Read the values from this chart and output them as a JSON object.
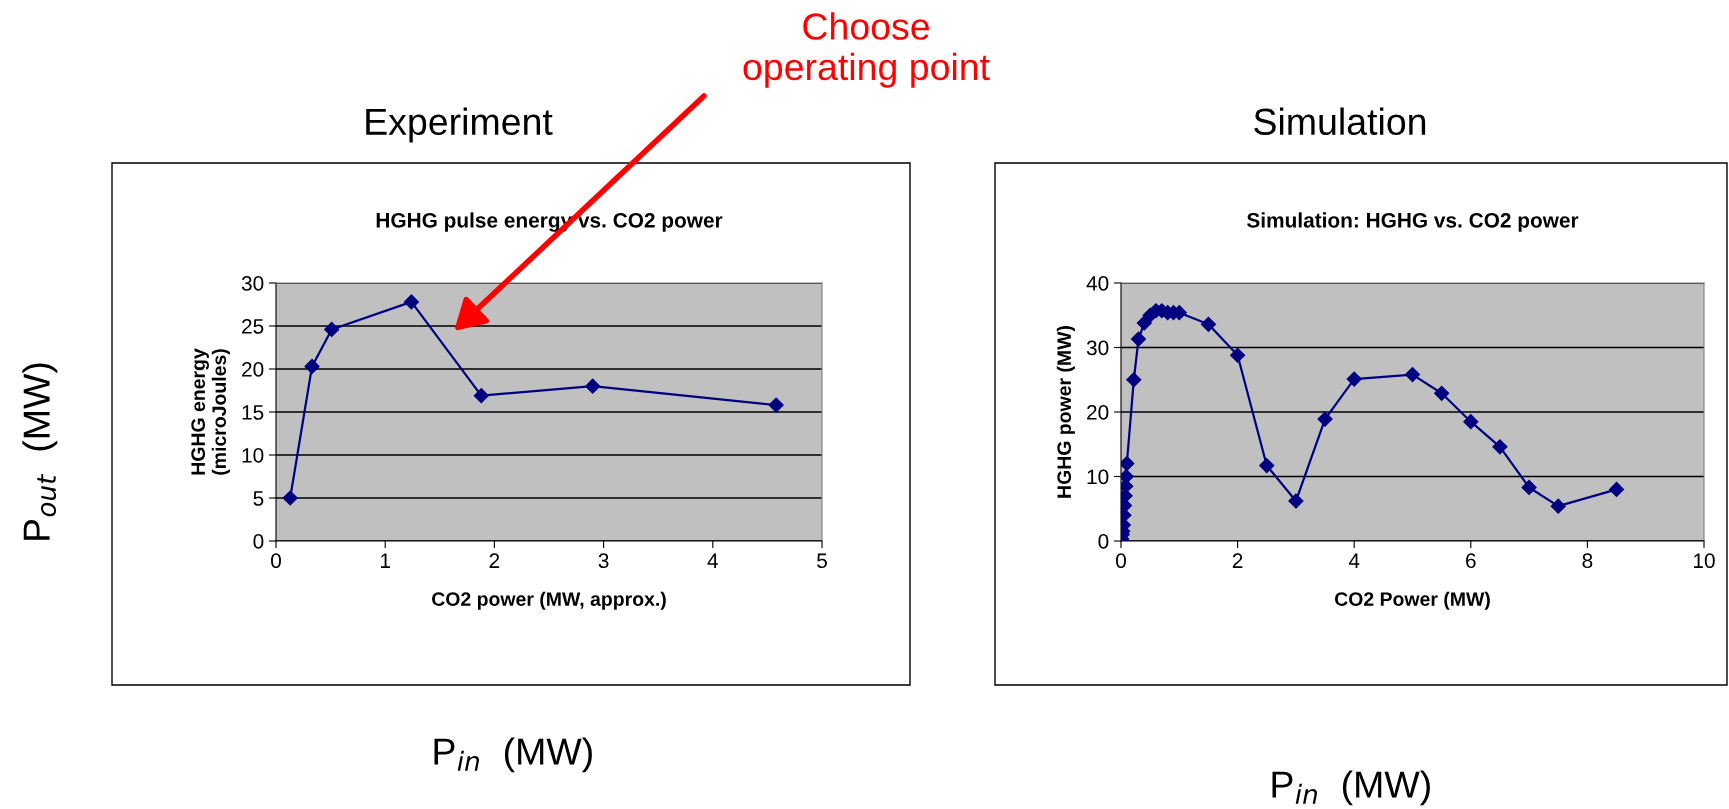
{
  "chart_data": [
    {
      "type": "line",
      "title": "HGHG pulse energy vs. CO2 power",
      "xlabel": "CO2 power (MW, approx.)",
      "ylabel": "HGHG energy\n(microJoules)",
      "series": [
        {
          "color": "#000080",
          "x": [
            0.13,
            0.33,
            0.51,
            1.24,
            1.88,
            2.9,
            4.58
          ],
          "values": [
            5,
            20.3,
            24.6,
            27.8,
            16.9,
            18,
            15.8
          ]
        }
      ],
      "xlim": [
        0,
        5
      ],
      "xticks": [
        0,
        1,
        2,
        3,
        4,
        5
      ],
      "ylim": [
        0,
        30
      ],
      "yticks": [
        0,
        5,
        10,
        15,
        20,
        25,
        30
      ],
      "grid": "y",
      "marker": "diamond",
      "line_style": "solid",
      "legend": false,
      "annotations": [
        "Experiment",
        "P$_{out}$  (MW)",
        "P$_{in}$  (MW)",
        "Choose\noperating point"
      ]
    },
    {
      "type": "line",
      "title": "Simulation: HGHG vs. CO2 power",
      "xlabel": "CO2 Power (MW)",
      "ylabel": "HGHG power (MW)",
      "series": [
        {
          "color": "#000080",
          "x": [
            0,
            0.01,
            0.02,
            0.03,
            0.04,
            0.05,
            0.06,
            0.07,
            0.08,
            0.09,
            0.1,
            0.22,
            0.3,
            0.4,
            0.5,
            0.6,
            0.7,
            0.8,
            0.9,
            1.0,
            1.5,
            2,
            2.5,
            3,
            3.5,
            4,
            5,
            5.5,
            6,
            6.5,
            7,
            7.5,
            8.5
          ],
          "values": [
            0,
            0.3,
            1,
            1.5,
            2.5,
            4,
            5.5,
            7,
            8.5,
            10,
            12,
            25,
            31.3,
            33.8,
            35,
            35.7,
            35.7,
            35.4,
            35.4,
            35.4,
            33.6,
            28.8,
            11.7,
            6.2,
            18.9,
            25.1,
            25.8,
            22.9,
            18.5,
            14.6,
            8.3,
            5.4,
            8
          ]
        }
      ],
      "xlim": [
        0,
        10
      ],
      "xticks": [
        0,
        2,
        4,
        6,
        8,
        10
      ],
      "ylim": [
        0,
        40
      ],
      "yticks": [
        0,
        10,
        20,
        30,
        40
      ],
      "grid": "y",
      "marker": "diamond",
      "line_style": "solid",
      "legend": false,
      "annotations": [
        "Simulation",
        "P$_{in}$  (MW)"
      ]
    }
  ]
}
